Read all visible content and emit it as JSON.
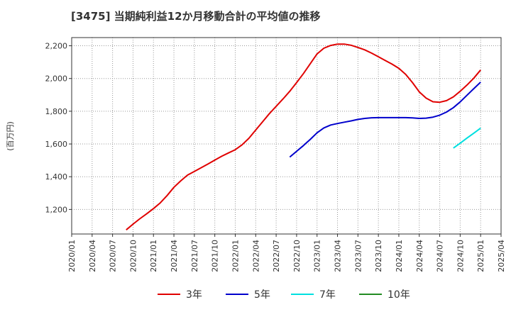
{
  "chart_data": {
    "type": "line",
    "title": "[3475]  当期純利益12か月移動合計の平均値の推移",
    "ylabel": "(百万円)",
    "xlabel": "",
    "ylim": [
      1050,
      2250
    ],
    "yticks": [
      1200,
      1400,
      1600,
      1800,
      2000,
      2200
    ],
    "ytick_labels": [
      "1,200",
      "1,400",
      "1,600",
      "1,800",
      "2,000",
      "2,200"
    ],
    "xtick_labels": [
      "2020/01",
      "2020/04",
      "2020/07",
      "2020/10",
      "2021/01",
      "2021/04",
      "2021/07",
      "2021/10",
      "2022/01",
      "2022/04",
      "2022/07",
      "2022/10",
      "2023/01",
      "2023/04",
      "2023/07",
      "2023/10",
      "2024/01",
      "2024/04",
      "2024/07",
      "2024/10",
      "2025/01",
      "2025/04"
    ],
    "grid": true,
    "legend_position": "bottom",
    "series": [
      {
        "name": "3年",
        "color": "#e00000",
        "x": [
          "2020/09",
          "2020/10",
          "2020/11",
          "2020/12",
          "2021/01",
          "2021/02",
          "2021/03",
          "2021/04",
          "2021/05",
          "2021/06",
          "2021/07",
          "2021/08",
          "2021/09",
          "2021/10",
          "2021/11",
          "2021/12",
          "2022/01",
          "2022/02",
          "2022/03",
          "2022/04",
          "2022/05",
          "2022/06",
          "2022/07",
          "2022/08",
          "2022/09",
          "2022/10",
          "2022/11",
          "2022/12",
          "2023/01",
          "2023/02",
          "2023/03",
          "2023/04",
          "2023/05",
          "2023/06",
          "2023/07",
          "2023/08",
          "2023/09",
          "2023/10",
          "2023/11",
          "2023/12",
          "2024/01",
          "2024/02",
          "2024/03",
          "2024/04",
          "2024/05",
          "2024/06",
          "2024/07",
          "2024/08",
          "2024/09",
          "2024/10",
          "2024/11",
          "2024/12",
          "2025/01"
        ],
        "values": [
          1075,
          1110,
          1143,
          1173,
          1205,
          1240,
          1285,
          1335,
          1375,
          1410,
          1432,
          1455,
          1478,
          1502,
          1525,
          1545,
          1565,
          1595,
          1635,
          1685,
          1735,
          1785,
          1830,
          1875,
          1922,
          1975,
          2030,
          2090,
          2150,
          2185,
          2202,
          2210,
          2210,
          2203,
          2190,
          2175,
          2155,
          2133,
          2110,
          2088,
          2062,
          2025,
          1975,
          1918,
          1880,
          1858,
          1855,
          1865,
          1888,
          1922,
          1960,
          2002,
          2052
        ]
      },
      {
        "name": "5年",
        "color": "#0000cc",
        "x": [
          "2022/09",
          "2022/10",
          "2022/11",
          "2022/12",
          "2023/01",
          "2023/02",
          "2023/03",
          "2023/04",
          "2023/05",
          "2023/06",
          "2023/07",
          "2023/08",
          "2023/09",
          "2023/10",
          "2023/11",
          "2023/12",
          "2024/01",
          "2024/02",
          "2024/03",
          "2024/04",
          "2024/05",
          "2024/06",
          "2024/07",
          "2024/08",
          "2024/09",
          "2024/10",
          "2024/11",
          "2024/12",
          "2025/01"
        ],
        "values": [
          1520,
          1555,
          1590,
          1628,
          1668,
          1698,
          1716,
          1725,
          1733,
          1741,
          1750,
          1756,
          1760,
          1761,
          1761,
          1761,
          1761,
          1761,
          1759,
          1756,
          1758,
          1764,
          1776,
          1795,
          1822,
          1857,
          1898,
          1938,
          1978
        ]
      },
      {
        "name": "7年",
        "color": "#00e0e0",
        "x": [
          "2024/09",
          "2024/10",
          "2024/11",
          "2024/12",
          "2025/01"
        ],
        "values": [
          1575,
          1605,
          1636,
          1666,
          1697
        ]
      },
      {
        "name": "10年",
        "color": "#228b22",
        "x": [],
        "values": []
      }
    ]
  }
}
